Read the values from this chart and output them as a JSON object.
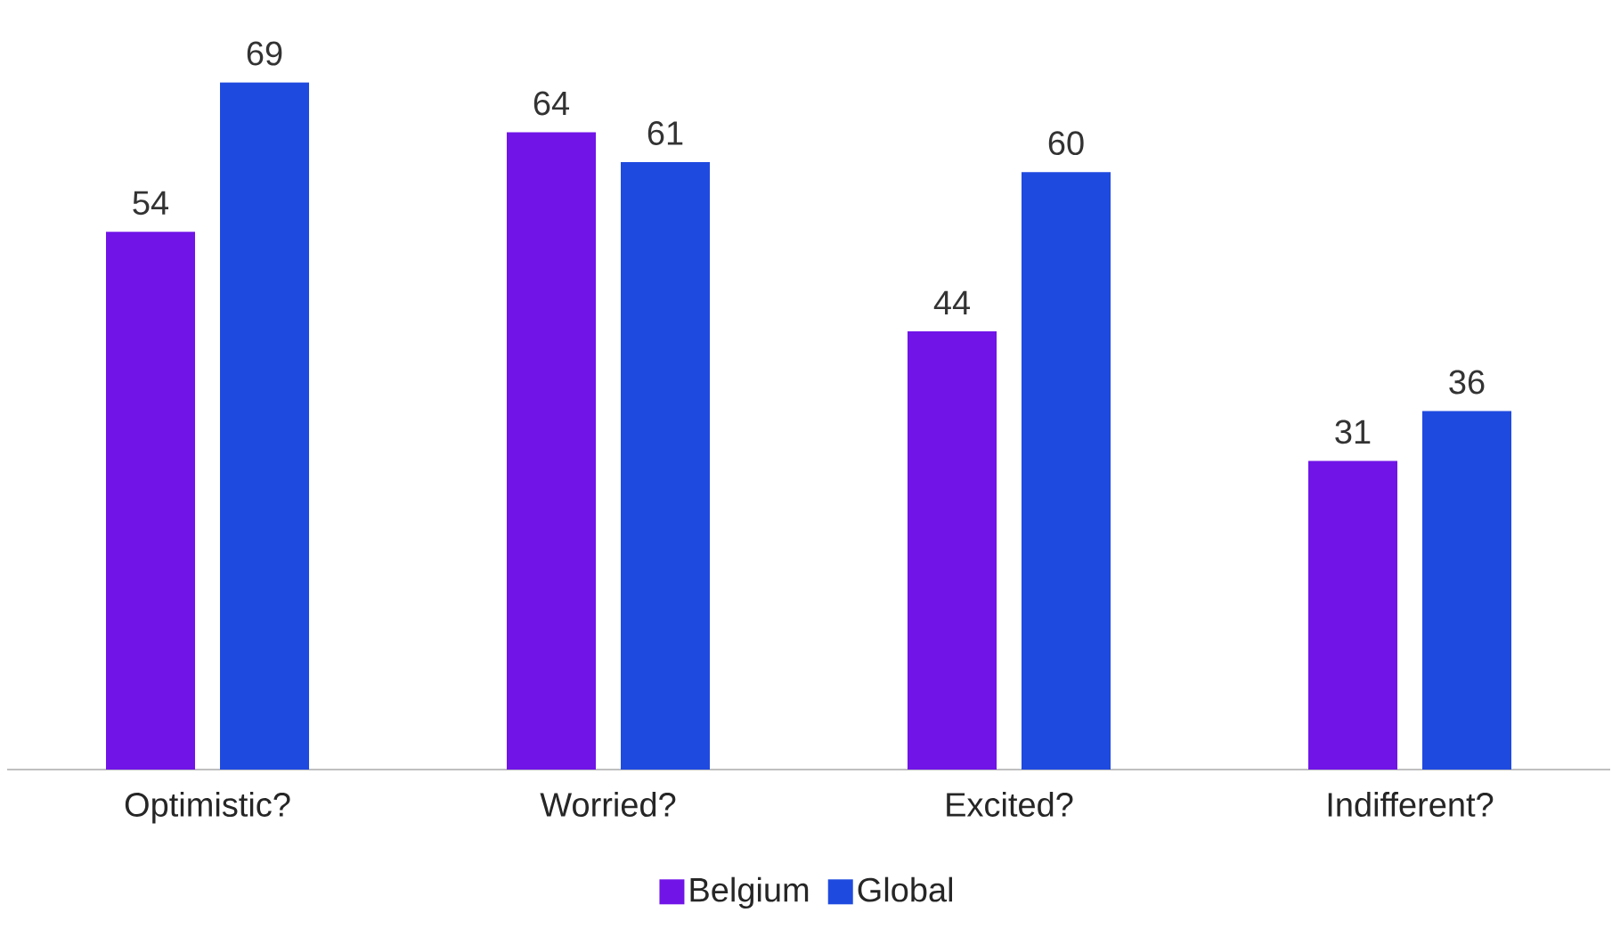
{
  "chart_data": {
    "type": "bar",
    "categories": [
      "Optimistic?",
      "Worried?",
      "Excited?",
      "Indifferent?"
    ],
    "series": [
      {
        "name": "Belgium",
        "color": "#7014e8",
        "values": [
          54,
          64,
          44,
          31
        ]
      },
      {
        "name": "Global",
        "color": "#1f4ae0",
        "values": [
          69,
          61,
          60,
          36
        ]
      }
    ],
    "tick_labels": "x",
    "data_labels": true,
    "legend": "bottom"
  }
}
